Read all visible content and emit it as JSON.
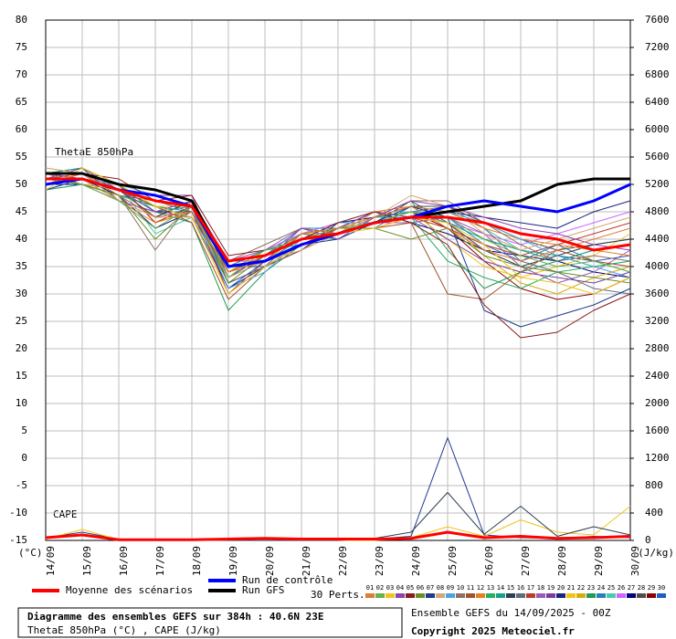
{
  "chart_data": {
    "type": "line",
    "annotations": [
      "ThetaE 850hPa",
      "CAPE"
    ],
    "y_unit": "(°C)",
    "y2_unit": "(J/kg)",
    "x": [
      "14/09",
      "15/09",
      "16/09",
      "17/09",
      "18/09",
      "19/09",
      "20/09",
      "21/09",
      "22/09",
      "23/09",
      "24/09",
      "25/09",
      "26/09",
      "27/09",
      "28/09",
      "29/09",
      "30/09"
    ],
    "ylim": [
      -15,
      80
    ],
    "yticks": [
      -15,
      -10,
      -5,
      0,
      5,
      10,
      15,
      20,
      25,
      30,
      35,
      40,
      45,
      50,
      55,
      60,
      65,
      70,
      75,
      80
    ],
    "y2lim": [
      0,
      7600
    ],
    "y2ticks": [
      0,
      400,
      800,
      1200,
      1600,
      2000,
      2400,
      2800,
      3200,
      3600,
      4000,
      4400,
      4800,
      5200,
      5600,
      6000,
      6400,
      6800,
      7200,
      7600
    ],
    "grid": true,
    "perts_label": "30 Perts.",
    "series": [
      {
        "name": "Moyenne des scénarios",
        "color": "#ff0000",
        "values": [
          51,
          51,
          49,
          47,
          46,
          36,
          37,
          40,
          41,
          43,
          44,
          44,
          43,
          41,
          40,
          38,
          39
        ]
      },
      {
        "name": "Run de contrôle",
        "color": "#0000ff",
        "values": [
          50,
          51,
          49,
          48,
          46,
          35,
          36,
          39,
          41,
          43,
          44,
          46,
          47,
          46,
          45,
          47,
          50
        ]
      },
      {
        "name": "Run GFS",
        "color": "#000000",
        "values": [
          52,
          52,
          50,
          49,
          47,
          35,
          36,
          39,
          41,
          43,
          44,
          45,
          46,
          47,
          50,
          51,
          51
        ]
      },
      {
        "name": "01",
        "color": "#e07b39",
        "values": [
          50,
          52,
          48,
          44,
          45,
          34,
          36,
          41,
          42,
          44,
          46,
          42,
          38,
          36,
          38,
          40,
          42
        ]
      },
      {
        "name": "02",
        "color": "#6ab04c",
        "values": [
          51,
          50,
          47,
          42,
          46,
          33,
          38,
          40,
          42,
          43,
          45,
          44,
          40,
          37,
          35,
          36,
          34
        ]
      },
      {
        "name": "03",
        "color": "#f0c419",
        "values": [
          49,
          53,
          50,
          46,
          44,
          30,
          35,
          39,
          41,
          42,
          44,
          43,
          39,
          33,
          32,
          30,
          33
        ]
      },
      {
        "name": "04",
        "color": "#8e44ad",
        "values": [
          52,
          51,
          49,
          45,
          47,
          36,
          36,
          42,
          40,
          44,
          47,
          46,
          44,
          42,
          41,
          39,
          38
        ]
      },
      {
        "name": "05",
        "color": "#8b1a1a",
        "values": [
          50,
          52,
          51,
          47,
          48,
          37,
          38,
          40,
          43,
          45,
          43,
          39,
          28,
          22,
          23,
          27,
          30
        ]
      },
      {
        "name": "06",
        "color": "#6b8e23",
        "values": [
          51,
          50,
          48,
          40,
          46,
          32,
          37,
          41,
          42,
          42,
          40,
          42,
          37,
          35,
          34,
          33,
          32
        ]
      },
      {
        "name": "07",
        "color": "#1e3a8a",
        "values": [
          49,
          51,
          49,
          45,
          45,
          35,
          35,
          39,
          40,
          43,
          46,
          44,
          27,
          24,
          26,
          28,
          31
        ]
      },
      {
        "name": "08",
        "color": "#d2a679",
        "values": [
          53,
          52,
          47,
          44,
          44,
          33,
          36,
          38,
          41,
          44,
          48,
          46,
          41,
          38,
          40,
          42,
          44
        ]
      },
      {
        "name": "09",
        "color": "#4aa3df",
        "values": [
          50,
          51,
          50,
          48,
          46,
          31,
          34,
          40,
          43,
          43,
          45,
          45,
          43,
          40,
          37,
          35,
          33
        ]
      },
      {
        "name": "10",
        "color": "#8d6e63",
        "values": [
          52,
          50,
          48,
          38,
          47,
          36,
          39,
          42,
          41,
          44,
          47,
          47,
          43,
          39,
          36,
          37,
          36
        ]
      },
      {
        "name": "11",
        "color": "#a0522d",
        "values": [
          51,
          52,
          49,
          46,
          43,
          29,
          35,
          38,
          42,
          42,
          43,
          30,
          29,
          34,
          38,
          36,
          35
        ]
      },
      {
        "name": "12",
        "color": "#e67e22",
        "values": [
          50,
          51,
          47,
          43,
          45,
          34,
          37,
          40,
          41,
          45,
          46,
          45,
          42,
          40,
          39,
          38,
          37
        ]
      },
      {
        "name": "13",
        "color": "#27ae60",
        "values": [
          49,
          50,
          48,
          46,
          44,
          33,
          36,
          41,
          42,
          43,
          44,
          36,
          33,
          31,
          34,
          35,
          36
        ]
      },
      {
        "name": "14",
        "color": "#16a085",
        "values": [
          52,
          53,
          50,
          45,
          46,
          35,
          38,
          39,
          41,
          44,
          45,
          43,
          40,
          38,
          36,
          38,
          39
        ]
      },
      {
        "name": "15",
        "color": "#2c3e50",
        "values": [
          51,
          51,
          49,
          44,
          47,
          34,
          37,
          40,
          43,
          43,
          47,
          43,
          38,
          35,
          37,
          39,
          40
        ]
      },
      {
        "name": "16",
        "color": "#5d6d7e",
        "values": [
          50,
          52,
          48,
          47,
          45,
          32,
          35,
          41,
          40,
          44,
          45,
          46,
          42,
          36,
          34,
          31,
          30
        ]
      },
      {
        "name": "17",
        "color": "#c0392b",
        "values": [
          52,
          51,
          50,
          43,
          46,
          30,
          36,
          39,
          42,
          42,
          44,
          42,
          39,
          37,
          39,
          41,
          43
        ]
      },
      {
        "name": "18",
        "color": "#9b59b6",
        "values": [
          49,
          50,
          47,
          45,
          44,
          36,
          38,
          42,
          41,
          43,
          43,
          44,
          41,
          35,
          32,
          34,
          38
        ]
      },
      {
        "name": "19",
        "color": "#7d3c98",
        "values": [
          51,
          53,
          49,
          48,
          48,
          33,
          37,
          40,
          42,
          45,
          44,
          40,
          36,
          34,
          33,
          32,
          34
        ]
      },
      {
        "name": "20",
        "color": "#1a237e",
        "values": [
          50,
          51,
          48,
          42,
          45,
          31,
          35,
          38,
          43,
          44,
          46,
          45,
          44,
          43,
          42,
          45,
          47
        ]
      },
      {
        "name": "21",
        "color": "#f1c40f",
        "values": [
          53,
          52,
          50,
          46,
          46,
          35,
          36,
          41,
          41,
          43,
          45,
          40,
          35,
          33,
          35,
          37,
          41
        ]
      },
      {
        "name": "22",
        "color": "#d4ac0d",
        "values": [
          51,
          50,
          49,
          44,
          47,
          34,
          38,
          40,
          42,
          43,
          44,
          43,
          37,
          32,
          30,
          33,
          35
        ]
      },
      {
        "name": "23",
        "color": "#229954",
        "values": [
          50,
          52,
          47,
          45,
          43,
          27,
          34,
          39,
          41,
          44,
          47,
          38,
          31,
          34,
          36,
          38,
          39
        ]
      },
      {
        "name": "24",
        "color": "#2980b9",
        "values": [
          52,
          51,
          48,
          46,
          45,
          33,
          37,
          42,
          42,
          42,
          46,
          44,
          39,
          36,
          39,
          36,
          34
        ]
      },
      {
        "name": "25",
        "color": "#48c9b0",
        "values": [
          49,
          51,
          50,
          41,
          44,
          36,
          36,
          40,
          40,
          44,
          44,
          45,
          42,
          38,
          37,
          35,
          36
        ]
      },
      {
        "name": "26",
        "color": "#cc66ff",
        "values": [
          51,
          52,
          49,
          47,
          46,
          35,
          38,
          41,
          43,
          43,
          45,
          43,
          41,
          39,
          41,
          43,
          45
        ]
      },
      {
        "name": "27",
        "color": "#000080",
        "values": [
          50,
          50,
          48,
          44,
          47,
          32,
          35,
          39,
          42,
          45,
          43,
          41,
          38,
          37,
          36,
          34,
          33
        ]
      },
      {
        "name": "28",
        "color": "#4d4d4d",
        "values": [
          52,
          53,
          47,
          45,
          45,
          34,
          36,
          40,
          41,
          44,
          46,
          46,
          43,
          40,
          38,
          39,
          40
        ]
      },
      {
        "name": "29",
        "color": "#8b0000",
        "values": [
          51,
          51,
          50,
          43,
          46,
          33,
          37,
          41,
          42,
          43,
          45,
          42,
          36,
          31,
          29,
          30,
          33
        ]
      },
      {
        "name": "30",
        "color": "#1f5fbf",
        "values": [
          50,
          52,
          49,
          46,
          44,
          31,
          36,
          40,
          43,
          44,
          44,
          44,
          40,
          38,
          37,
          36,
          37
        ]
      }
    ],
    "cape_series": [
      {
        "axis": "y2",
        "color": "#1e3a8a",
        "values": [
          40,
          120,
          20,
          0,
          0,
          0,
          0,
          0,
          0,
          20,
          60,
          1500,
          80,
          40,
          30,
          60,
          40
        ]
      },
      {
        "axis": "y2",
        "color": "#f0c419",
        "values": [
          20,
          160,
          10,
          0,
          0,
          0,
          0,
          0,
          0,
          0,
          40,
          200,
          60,
          300,
          120,
          80,
          500
        ]
      },
      {
        "axis": "y2",
        "color": "#2c3e50",
        "values": [
          30,
          90,
          10,
          0,
          10,
          0,
          0,
          0,
          0,
          30,
          120,
          700,
          90,
          500,
          60,
          200,
          80
        ]
      },
      {
        "axis": "y2",
        "color": "#ff0000",
        "values": [
          40,
          80,
          10,
          10,
          10,
          20,
          30,
          20,
          20,
          20,
          30,
          120,
          40,
          60,
          30,
          40,
          60
        ]
      }
    ]
  },
  "footer": {
    "title": "Diagramme des ensembles GEFS sur 384h : 40.6N 23E",
    "subtitle": "ThetaE 850hPa (°C) , CAPE (J/kg)",
    "run": "Ensemble GEFS du 14/09/2025 - 00Z",
    "copyright": "Copyright 2025 Meteociel.fr"
  }
}
